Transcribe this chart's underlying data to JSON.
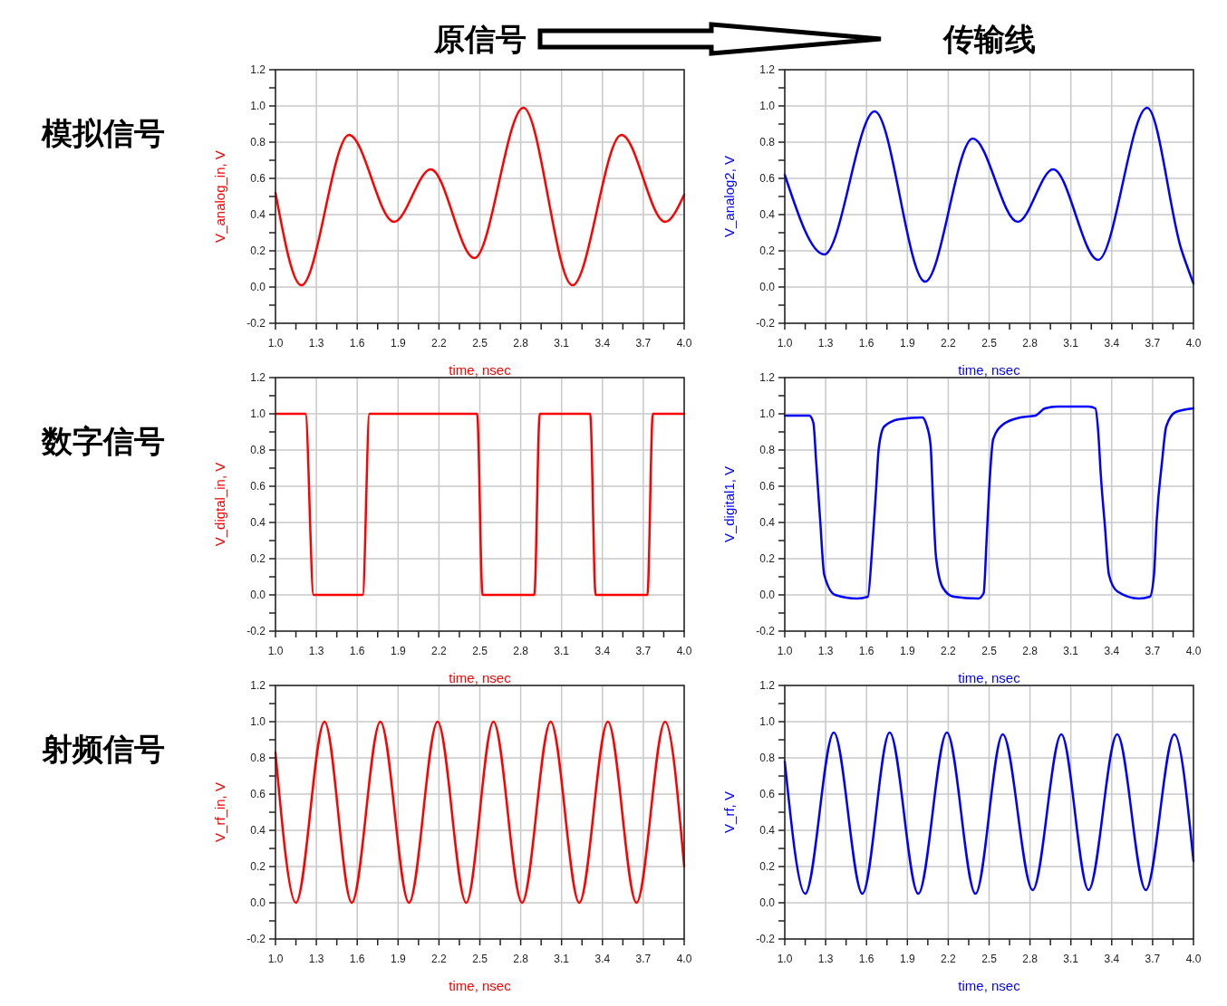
{
  "chart_data": [
    {
      "type": "line",
      "title": "原信号",
      "annotations": [
        "模拟信号"
      ],
      "xlabel": "time, nsec",
      "ylabel": "V_analog_in, V",
      "grid": true,
      "xlim": [
        1,
        4
      ],
      "ylim": [
        -0.2,
        1.2
      ],
      "xticks": [
        {
          "value": 1,
          "label": "1.0"
        },
        {
          "value": 1.15,
          "label": null
        },
        1.3,
        {
          "value": 1.45,
          "label": null
        },
        1.6,
        {
          "value": 1.75,
          "label": null
        },
        1.9,
        {
          "value": 2.05,
          "label": null
        },
        2.2,
        {
          "value": 2.35,
          "label": null
        },
        2.5,
        {
          "value": 2.65,
          "label": null
        },
        2.8,
        {
          "value": 2.95,
          "label": null
        },
        3.1,
        {
          "value": 3.25,
          "label": null
        },
        3.4,
        {
          "value": 3.55,
          "label": null
        },
        3.7,
        {
          "value": 3.85,
          "label": null
        },
        {
          "value": 4,
          "label": "4.0"
        }
      ],
      "yticks": [
        -0.2,
        {
          "value": -0.1,
          "label": null
        },
        {
          "value": 0,
          "label": "0.0"
        },
        {
          "value": 0.1,
          "label": null
        },
        0.2,
        {
          "value": 0.3,
          "label": null
        },
        0.4,
        {
          "value": 0.5,
          "label": null
        },
        0.6,
        {
          "value": 0.7,
          "label": null
        },
        0.8,
        {
          "value": 0.9,
          "label": null
        },
        {
          "value": 1,
          "label": "1.0"
        },
        {
          "value": 1.1,
          "label": null
        },
        1.2
      ],
      "series": [
        {
          "color": "#ff0000",
          "x": [
            1.0,
            1.19,
            1.54,
            1.87,
            2.14,
            2.46,
            2.82,
            3.18,
            3.54,
            3.86,
            4.0
          ],
          "values": [
            0.52,
            0.01,
            0.84,
            0.36,
            0.65,
            0.16,
            0.99,
            0.01,
            0.84,
            0.36,
            0.51
          ]
        }
      ]
    },
    {
      "type": "line",
      "title": "传输线",
      "xlabel": "time, nsec",
      "ylabel": "V_analog2, V",
      "grid": true,
      "xlim": [
        1,
        4
      ],
      "ylim": [
        -0.2,
        1.2
      ],
      "xticks": [
        {
          "value": 1,
          "label": "1.0"
        },
        {
          "value": 1.15,
          "label": null
        },
        1.3,
        {
          "value": 1.45,
          "label": null
        },
        1.6,
        {
          "value": 1.75,
          "label": null
        },
        1.9,
        {
          "value": 2.05,
          "label": null
        },
        2.2,
        {
          "value": 2.35,
          "label": null
        },
        2.5,
        {
          "value": 2.65,
          "label": null
        },
        2.8,
        {
          "value": 2.95,
          "label": null
        },
        3.1,
        {
          "value": 3.25,
          "label": null
        },
        3.4,
        {
          "value": 3.55,
          "label": null
        },
        3.7,
        {
          "value": 3.85,
          "label": null
        },
        {
          "value": 4,
          "label": "4.0"
        }
      ],
      "yticks": [
        -0.2,
        {
          "value": -0.1,
          "label": null
        },
        {
          "value": 0,
          "label": "0.0"
        },
        {
          "value": 0.1,
          "label": null
        },
        0.2,
        {
          "value": 0.3,
          "label": null
        },
        0.4,
        {
          "value": 0.5,
          "label": null
        },
        0.6,
        {
          "value": 0.7,
          "label": null
        },
        0.8,
        {
          "value": 0.9,
          "label": null
        },
        {
          "value": 1,
          "label": "1.0"
        },
        {
          "value": 1.1,
          "label": null
        },
        1.2
      ],
      "series": [
        {
          "color": "#0000ff",
          "x": [
            1.0,
            1.29,
            1.66,
            2.03,
            2.38,
            2.71,
            2.97,
            3.3,
            3.66,
            3.91,
            4.0
          ],
          "values": [
            0.62,
            0.18,
            0.97,
            0.03,
            0.82,
            0.36,
            0.65,
            0.15,
            0.99,
            0.21,
            0.02
          ]
        }
      ]
    },
    {
      "type": "line",
      "annotations": [
        "数字信号"
      ],
      "xlabel": "time, nsec",
      "ylabel": "V_digtal_in, V",
      "grid": true,
      "xlim": [
        1,
        4
      ],
      "ylim": [
        -0.2,
        1.2
      ],
      "xticks": [
        {
          "value": 1,
          "label": "1.0"
        },
        {
          "value": 1.15,
          "label": null
        },
        1.3,
        {
          "value": 1.45,
          "label": null
        },
        1.6,
        {
          "value": 1.75,
          "label": null
        },
        1.9,
        {
          "value": 2.05,
          "label": null
        },
        2.2,
        {
          "value": 2.35,
          "label": null
        },
        2.5,
        {
          "value": 2.65,
          "label": null
        },
        2.8,
        {
          "value": 2.95,
          "label": null
        },
        3.1,
        {
          "value": 3.25,
          "label": null
        },
        3.4,
        {
          "value": 3.55,
          "label": null
        },
        3.7,
        {
          "value": 3.85,
          "label": null
        },
        {
          "value": 4,
          "label": "4.0"
        }
      ],
      "yticks": [
        -0.2,
        {
          "value": -0.1,
          "label": null
        },
        {
          "value": 0,
          "label": "0.0"
        },
        {
          "value": 0.1,
          "label": null
        },
        0.2,
        {
          "value": 0.3,
          "label": null
        },
        0.4,
        {
          "value": 0.5,
          "label": null
        },
        0.6,
        {
          "value": 0.7,
          "label": null
        },
        0.8,
        {
          "value": 0.9,
          "label": null
        },
        {
          "value": 1,
          "label": "1.0"
        },
        {
          "value": 1.1,
          "label": null
        },
        1.2
      ],
      "series": [
        {
          "color": "#ff0000",
          "x": [
            1.0,
            1.22,
            1.28,
            1.64,
            1.69,
            2.48,
            2.52,
            2.9,
            2.94,
            3.31,
            3.35,
            3.73,
            3.77,
            4.0
          ],
          "values": [
            1.0,
            1.0,
            0.0,
            0.0,
            1.0,
            1.0,
            0.0,
            0.0,
            1.0,
            1.0,
            0.0,
            0.0,
            1.0,
            1.0
          ]
        }
      ]
    },
    {
      "type": "line",
      "xlabel": "time, nsec",
      "ylabel": "V_digital1, V",
      "grid": true,
      "xlim": [
        1,
        4
      ],
      "ylim": [
        -0.2,
        1.2
      ],
      "xticks": [
        {
          "value": 1,
          "label": "1.0"
        },
        {
          "value": 1.15,
          "label": null
        },
        1.3,
        {
          "value": 1.45,
          "label": null
        },
        1.6,
        {
          "value": 1.75,
          "label": null
        },
        1.9,
        {
          "value": 2.05,
          "label": null
        },
        2.2,
        {
          "value": 2.35,
          "label": null
        },
        2.5,
        {
          "value": 2.65,
          "label": null
        },
        2.8,
        {
          "value": 2.95,
          "label": null
        },
        3.1,
        {
          "value": 3.25,
          "label": null
        },
        3.4,
        {
          "value": 3.55,
          "label": null
        },
        3.7,
        {
          "value": 3.85,
          "label": null
        },
        {
          "value": 4,
          "label": "4.0"
        }
      ],
      "yticks": [
        -0.2,
        {
          "value": -0.1,
          "label": null
        },
        {
          "value": 0,
          "label": "0.0"
        },
        {
          "value": 0.1,
          "label": null
        },
        0.2,
        {
          "value": 0.3,
          "label": null
        },
        0.4,
        {
          "value": 0.5,
          "label": null
        },
        0.6,
        {
          "value": 0.7,
          "label": null
        },
        0.8,
        {
          "value": 0.9,
          "label": null
        },
        {
          "value": 1,
          "label": "1.0"
        },
        {
          "value": 1.1,
          "label": null
        },
        1.2
      ],
      "series": [
        {
          "color": "#0000ff",
          "x": [
            1.0,
            1.18,
            1.21,
            1.23,
            1.26,
            1.29,
            1.37,
            1.53,
            1.61,
            1.64,
            1.67,
            1.69,
            1.73,
            1.84,
            2.01,
            2.04,
            2.07,
            2.09,
            2.11,
            2.16,
            2.24,
            2.42,
            2.46,
            2.48,
            2.5,
            2.53,
            2.6,
            2.73,
            2.84,
            2.91,
            3.0,
            3.23,
            3.28,
            3.3,
            3.32,
            3.35,
            3.38,
            3.44,
            3.6,
            3.68,
            3.71,
            3.73,
            3.77,
            3.8,
            3.87,
            4.0
          ],
          "values": [
            0.99,
            0.99,
            0.95,
            0.74,
            0.41,
            0.11,
            0.0,
            -0.02,
            -0.01,
            0.24,
            0.58,
            0.81,
            0.93,
            0.97,
            0.98,
            0.94,
            0.83,
            0.49,
            0.21,
            0.04,
            -0.01,
            -0.02,
            0.01,
            0.28,
            0.58,
            0.86,
            0.94,
            0.98,
            0.99,
            1.03,
            1.04,
            1.04,
            1.03,
            0.91,
            0.66,
            0.38,
            0.11,
            0.02,
            -0.02,
            -0.01,
            0.11,
            0.41,
            0.74,
            0.93,
            1.01,
            1.03
          ]
        }
      ]
    },
    {
      "type": "line",
      "annotations": [
        "射频信号"
      ],
      "xlabel": "time, nsec",
      "ylabel": "V_rf_in, V",
      "grid": true,
      "xlim": [
        1,
        4
      ],
      "ylim": [
        -0.2,
        1.2
      ],
      "xticks": [
        {
          "value": 1,
          "label": "1.0"
        },
        {
          "value": 1.15,
          "label": null
        },
        1.3,
        {
          "value": 1.45,
          "label": null
        },
        1.6,
        {
          "value": 1.75,
          "label": null
        },
        1.9,
        {
          "value": 2.05,
          "label": null
        },
        2.2,
        {
          "value": 2.35,
          "label": null
        },
        2.5,
        {
          "value": 2.65,
          "label": null
        },
        2.8,
        {
          "value": 2.95,
          "label": null
        },
        3.1,
        {
          "value": 3.25,
          "label": null
        },
        3.4,
        {
          "value": 3.55,
          "label": null
        },
        3.7,
        {
          "value": 3.85,
          "label": null
        },
        {
          "value": 4,
          "label": "4.0"
        }
      ],
      "yticks": [
        -0.2,
        {
          "value": -0.1,
          "label": null
        },
        {
          "value": 0,
          "label": "0.0"
        },
        {
          "value": 0.1,
          "label": null
        },
        0.2,
        {
          "value": 0.3,
          "label": null
        },
        0.4,
        {
          "value": 0.5,
          "label": null
        },
        0.6,
        {
          "value": 0.7,
          "label": null
        },
        0.8,
        {
          "value": 0.9,
          "label": null
        },
        {
          "value": 1,
          "label": "1.0"
        },
        {
          "value": 1.1,
          "label": null
        },
        1.2
      ],
      "series": [
        {
          "color": "#ff0000",
          "x": [
            1.0,
            1.15,
            1.36,
            1.56,
            1.77,
            1.98,
            2.19,
            2.4,
            2.6,
            2.81,
            3.02,
            3.23,
            3.44,
            3.65,
            3.86,
            4.0
          ],
          "values": [
            0.83,
            0.0,
            1.0,
            0.0,
            1.0,
            0.0,
            1.0,
            0.0,
            1.0,
            0.0,
            1.0,
            0.0,
            1.0,
            0.0,
            1.0,
            0.2
          ]
        }
      ]
    },
    {
      "type": "line",
      "xlabel": "time, nsec",
      "ylabel": "V_rf, V",
      "grid": true,
      "xlim": [
        1,
        4
      ],
      "ylim": [
        -0.2,
        1.2
      ],
      "xticks": [
        {
          "value": 1,
          "label": "1.0"
        },
        {
          "value": 1.15,
          "label": null
        },
        1.3,
        {
          "value": 1.45,
          "label": null
        },
        1.6,
        {
          "value": 1.75,
          "label": null
        },
        1.9,
        {
          "value": 2.05,
          "label": null
        },
        2.2,
        {
          "value": 2.35,
          "label": null
        },
        2.5,
        {
          "value": 2.65,
          "label": null
        },
        2.8,
        {
          "value": 2.95,
          "label": null
        },
        3.1,
        {
          "value": 3.25,
          "label": null
        },
        3.4,
        {
          "value": 3.55,
          "label": null
        },
        3.7,
        {
          "value": 3.85,
          "label": null
        },
        {
          "value": 4,
          "label": "4.0"
        }
      ],
      "yticks": [
        -0.2,
        {
          "value": -0.1,
          "label": null
        },
        {
          "value": 0,
          "label": "0.0"
        },
        {
          "value": 0.1,
          "label": null
        },
        0.2,
        {
          "value": 0.3,
          "label": null
        },
        0.4,
        {
          "value": 0.5,
          "label": null
        },
        0.6,
        {
          "value": 0.7,
          "label": null
        },
        0.8,
        {
          "value": 0.9,
          "label": null
        },
        {
          "value": 1,
          "label": "1.0"
        },
        {
          "value": 1.1,
          "label": null
        },
        1.2
      ],
      "series": [
        {
          "color": "#0000ff",
          "x": [
            1.0,
            1.15,
            1.36,
            1.57,
            1.77,
            1.98,
            2.19,
            2.4,
            2.6,
            2.82,
            3.03,
            3.23,
            3.44,
            3.65,
            3.86,
            4.0
          ],
          "values": [
            0.78,
            0.05,
            0.94,
            0.05,
            0.94,
            0.05,
            0.94,
            0.05,
            0.93,
            0.07,
            0.93,
            0.07,
            0.93,
            0.07,
            0.93,
            0.23
          ]
        }
      ]
    }
  ]
}
